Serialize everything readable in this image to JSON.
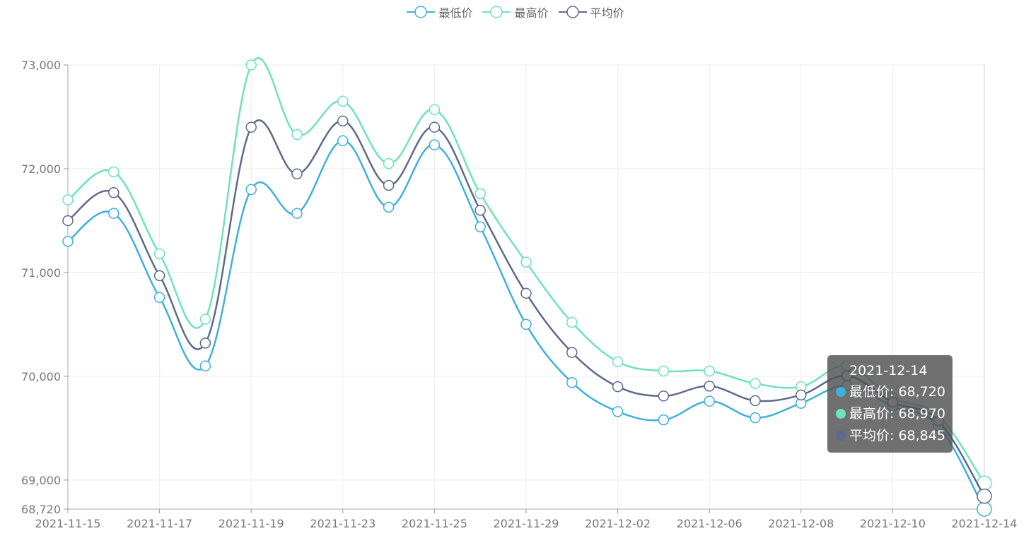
{
  "legend": [
    {
      "name": "最低价",
      "color": "#3fafdf"
    },
    {
      "name": "最高价",
      "color": "#6ee2be"
    },
    {
      "name": "平均价",
      "color": "#5e6a8b"
    }
  ],
  "tooltip": {
    "title": "2021-12-14",
    "rows": [
      {
        "label": "最低价: 68,720",
        "color": "#3fafdf"
      },
      {
        "label": "最高价: 68,970",
        "color": "#6ee2be"
      },
      {
        "label": "平均价: 68,845",
        "color": "#5e6a8b"
      }
    ]
  },
  "chart_data": {
    "type": "line",
    "smooth": true,
    "x": [
      "2021-11-15",
      "2021-11-16",
      "2021-11-17",
      "2021-11-18",
      "2021-11-19",
      "2021-11-22",
      "2021-11-23",
      "2021-11-24",
      "2021-11-25",
      "2021-11-26",
      "2021-11-29",
      "2021-11-30",
      "2021-12-02",
      "2021-12-03",
      "2021-12-06",
      "2021-12-07",
      "2021-12-08",
      "2021-12-09",
      "2021-12-10",
      "2021-12-13",
      "2021-12-14"
    ],
    "x_tick_labels": [
      "2021-11-15",
      "2021-11-17",
      "2021-11-19",
      "2021-11-23",
      "2021-11-25",
      "2021-11-29",
      "2021-12-02",
      "2021-12-06",
      "2021-12-08",
      "2021-12-10",
      "2021-12-14"
    ],
    "y_tick_labels": [
      "73,000",
      "72,000",
      "71,000",
      "70,000",
      "69,000",
      "68,720"
    ],
    "ylim": [
      68720,
      73000
    ],
    "grid": true,
    "legend_position": "top-center",
    "series": [
      {
        "name": "最低价",
        "color": "#3fafdf",
        "values": [
          71300,
          71570,
          70760,
          70100,
          71800,
          71570,
          72270,
          71630,
          72230,
          71440,
          70500,
          69940,
          69660,
          69580,
          69760,
          69600,
          69740,
          69910,
          69710,
          69520,
          68720
        ]
      },
      {
        "name": "最高价",
        "color": "#6ee2be",
        "values": [
          71700,
          71970,
          71180,
          70550,
          73000,
          72330,
          72650,
          72050,
          72570,
          71760,
          71100,
          70520,
          70140,
          70050,
          70050,
          69930,
          69900,
          70100,
          69790,
          69620,
          68970
        ]
      },
      {
        "name": "平均价",
        "color": "#5e6a8b",
        "values": [
          71500,
          71770,
          70970,
          70320,
          72400,
          71950,
          72460,
          71840,
          72400,
          71600,
          70800,
          70230,
          69900,
          69810,
          69905,
          69765,
          69820,
          70005,
          69750,
          69570,
          68845
        ]
      }
    ]
  }
}
